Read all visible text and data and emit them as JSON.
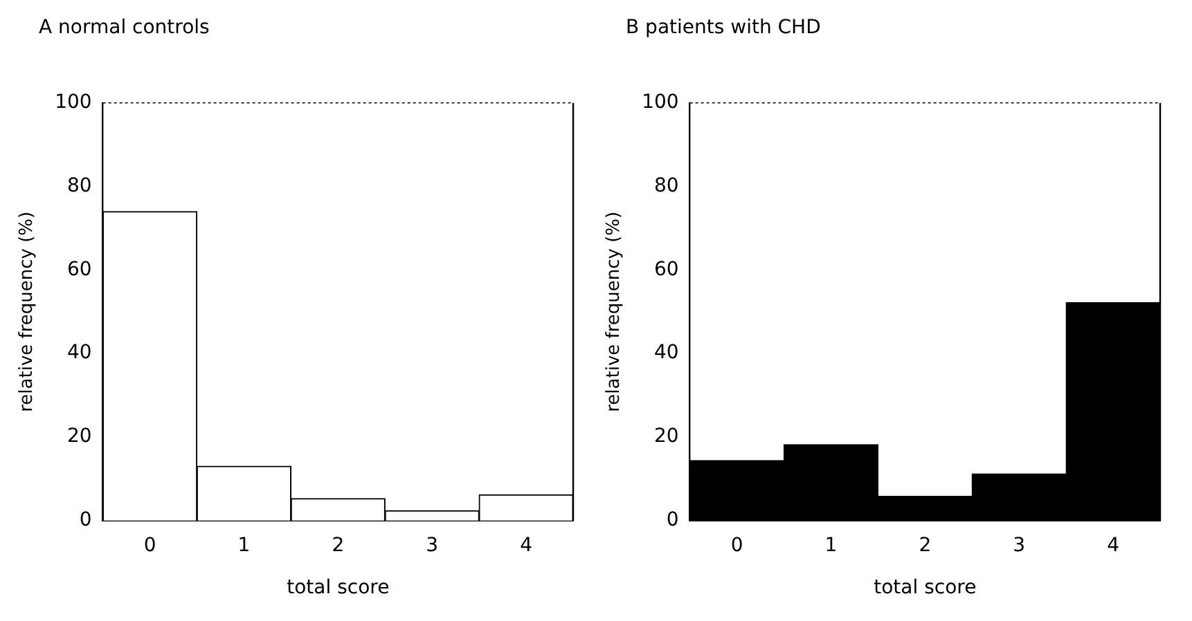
{
  "chart_data": [
    {
      "type": "bar",
      "title": "A normal controls",
      "xlabel": "total score",
      "ylabel": "relative frequency (%)",
      "categories": [
        "0",
        "1",
        "2",
        "3",
        "4"
      ],
      "values": [
        74,
        13,
        5.3,
        2.4,
        6.2
      ],
      "color": "#ffffff",
      "ylim": [
        0,
        100
      ],
      "yticks": [
        0,
        20,
        40,
        60,
        80,
        100
      ],
      "grid": false,
      "legend": false
    },
    {
      "type": "bar",
      "title": "B patients with CHD",
      "xlabel": "total score",
      "ylabel": "relative frequency (%)",
      "categories": [
        "0",
        "1",
        "2",
        "3",
        "4"
      ],
      "values": [
        14.4,
        18.2,
        5.8,
        11.2,
        52.2
      ],
      "color": "#000000",
      "ylim": [
        0,
        100
      ],
      "yticks": [
        0,
        20,
        40,
        60,
        80,
        100
      ],
      "grid": false,
      "legend": false
    }
  ]
}
